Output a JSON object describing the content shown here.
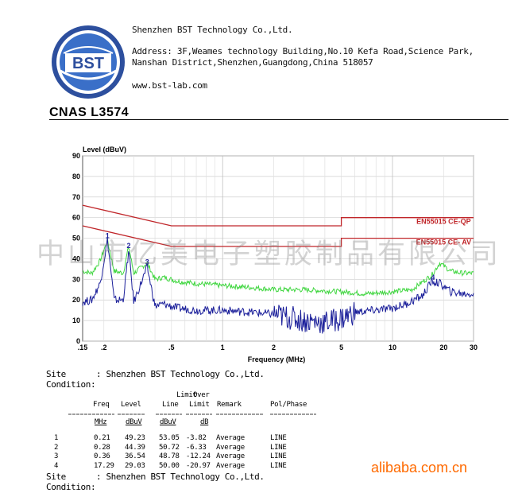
{
  "header": {
    "logo_text": "BST",
    "company": "Shenzhen BST Technology Co.,Ltd.",
    "address_line1": "Address: 3F,Weames technology Building,No.10 Kefa Road,Science Park,",
    "address_line2": "Nanshan District,Shenzhen,Guangdong,China 518057",
    "website": "www.bst-lab.com",
    "cnas": "CNAS L3574"
  },
  "chart_data": {
    "type": "line",
    "ylabel": "Level (dBuV)",
    "xlabel": "Frequency (MHz)",
    "x_scale": "log",
    "xlim": [
      0.15,
      30
    ],
    "ylim": [
      0,
      90
    ],
    "yticks": [
      "0",
      "10",
      "20",
      "30",
      "40",
      "50",
      "60",
      "70",
      "80",
      "90"
    ],
    "xticks": [
      {
        "v": 0.15,
        "t": ".15"
      },
      {
        "v": 0.2,
        "t": ".2"
      },
      {
        "v": 0.5,
        "t": ".5"
      },
      {
        "v": 1,
        "t": "1"
      },
      {
        "v": 2,
        "t": "2"
      },
      {
        "v": 5,
        "t": "5"
      },
      {
        "v": 10,
        "t": "10"
      },
      {
        "v": 20,
        "t": "20"
      },
      {
        "v": 30,
        "t": "30"
      }
    ],
    "grid": true,
    "limits": [
      {
        "name": "EN55015 CE-QP",
        "color": "#c0262a",
        "points": [
          [
            0.15,
            66
          ],
          [
            0.5,
            56
          ],
          [
            5,
            56
          ],
          [
            5,
            60
          ],
          [
            30,
            60
          ]
        ]
      },
      {
        "name": "EN55015 CE- AV",
        "color": "#c0262a",
        "points": [
          [
            0.15,
            56
          ],
          [
            0.5,
            46
          ],
          [
            5,
            46
          ],
          [
            5,
            50
          ],
          [
            30,
            50
          ]
        ]
      }
    ],
    "series": [
      {
        "color": "#3fd63f",
        "points": [
          [
            0.15,
            34
          ],
          [
            0.17,
            33
          ],
          [
            0.19,
            39
          ],
          [
            0.21,
            49
          ],
          [
            0.23,
            34
          ],
          [
            0.26,
            33
          ],
          [
            0.28,
            46
          ],
          [
            0.3,
            33
          ],
          [
            0.36,
            38
          ],
          [
            0.4,
            30
          ],
          [
            0.45,
            31
          ],
          [
            0.55,
            29
          ],
          [
            0.7,
            28
          ],
          [
            1,
            27
          ],
          [
            1.5,
            26
          ],
          [
            2,
            25
          ],
          [
            3,
            25
          ],
          [
            5,
            24
          ],
          [
            7,
            23
          ],
          [
            10,
            24
          ],
          [
            13,
            25
          ],
          [
            17,
            32
          ],
          [
            19,
            38
          ],
          [
            22,
            34
          ],
          [
            26,
            33
          ],
          [
            30,
            33
          ]
        ]
      },
      {
        "color": "#1b1f9a",
        "points": [
          [
            0.15,
            19
          ],
          [
            0.17,
            20
          ],
          [
            0.19,
            28
          ],
          [
            0.21,
            49
          ],
          [
            0.23,
            20
          ],
          [
            0.26,
            20
          ],
          [
            0.28,
            44
          ],
          [
            0.3,
            19
          ],
          [
            0.36,
            36
          ],
          [
            0.4,
            17
          ],
          [
            0.45,
            18
          ],
          [
            0.55,
            16
          ],
          [
            0.7,
            15
          ],
          [
            1,
            15
          ],
          [
            1.5,
            14
          ],
          [
            2,
            13
          ],
          [
            3,
            10
          ],
          [
            4,
            9
          ],
          [
            5,
            11
          ],
          [
            6,
            14
          ],
          [
            8,
            15
          ],
          [
            10,
            16
          ],
          [
            12,
            18
          ],
          [
            15,
            22
          ],
          [
            17,
            29
          ],
          [
            19,
            28
          ],
          [
            22,
            24
          ],
          [
            26,
            23
          ],
          [
            30,
            23
          ]
        ]
      }
    ],
    "markers": [
      {
        "label": "1",
        "x": 0.21,
        "y": 49.23
      },
      {
        "label": "2",
        "x": 0.28,
        "y": 44.39
      },
      {
        "label": "3",
        "x": 0.36,
        "y": 36.54
      },
      {
        "label": "4",
        "x": 17.29,
        "y": 29.03
      }
    ]
  },
  "report": {
    "site_label": "Site",
    "site_value": ": Shenzhen BST Technology Co.,Ltd.",
    "condition_label": "Condition:",
    "col_headers": {
      "limit_top": "Limit",
      "over_top": "Over",
      "freq": "Freq",
      "level": "Level",
      "line": "Line",
      "limit": "Limit",
      "remark": "Remark",
      "polphase": "Pol/Phase"
    },
    "units": {
      "freq": "MHz",
      "level": "dBuV",
      "line": "dBuV",
      "limit": "dB"
    },
    "rows": [
      {
        "no": "1",
        "freq": "0.21",
        "level": "49.23",
        "line": "53.05",
        "over": "-3.82",
        "remark": "Average",
        "pol": "LINE"
      },
      {
        "no": "2",
        "freq": "0.28",
        "level": "44.39",
        "line": "50.72",
        "over": "-6.33",
        "remark": "Average",
        "pol": "LINE"
      },
      {
        "no": "3",
        "freq": "0.36",
        "level": "36.54",
        "line": "48.78",
        "over": "-12.24",
        "remark": "Average",
        "pol": "LINE"
      },
      {
        "no": "4",
        "freq": "17.29",
        "level": "29.03",
        "line": "50.00",
        "over": "-20.97",
        "remark": "Average",
        "pol": "LINE"
      }
    ],
    "site2_label": "Site",
    "site2_value": ": Shenzhen BST Technology Co.,Ltd.",
    "condition2_label": "Condition:"
  },
  "watermark": "中山市亿美电子塑胶制品有限公司",
  "alibaba": "alibaba.com.cn"
}
